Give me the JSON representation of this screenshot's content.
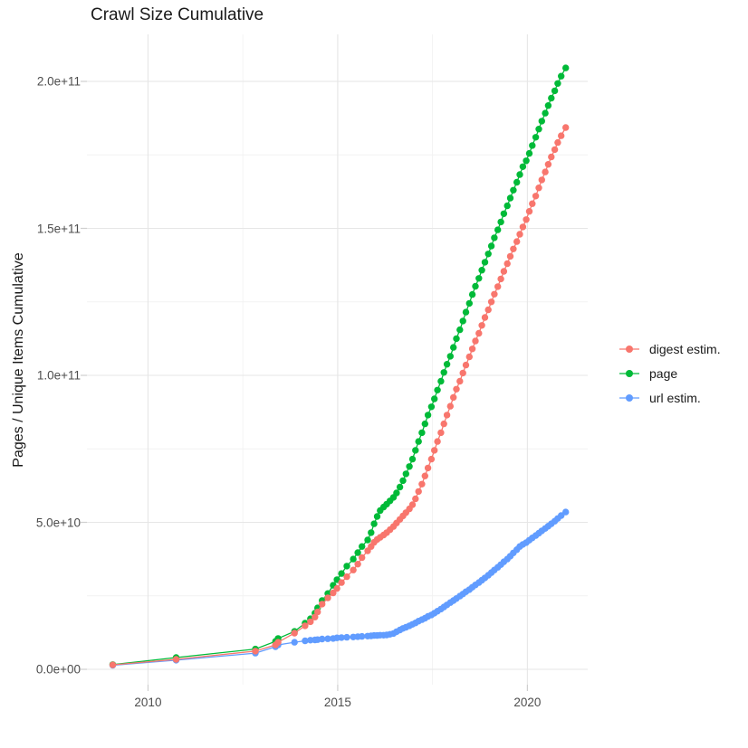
{
  "chart_data": {
    "type": "scatter",
    "title": "Crawl Size Cumulative",
    "xlabel": "",
    "ylabel": "Pages / Unique Items Cumulative",
    "legend_position": "right",
    "grid": true,
    "x_ticks": [
      {
        "value": 2010,
        "label": "2010"
      },
      {
        "value": 2015,
        "label": "2015"
      },
      {
        "value": 2020,
        "label": "2020"
      }
    ],
    "y_ticks": [
      {
        "value": 0,
        "label": "0.0e+00"
      },
      {
        "value": 50,
        "label": "5.0e+10"
      },
      {
        "value": 100,
        "label": "1.0e+11"
      },
      {
        "value": 150,
        "label": "1.5e+11"
      },
      {
        "value": 200,
        "label": "2.0e+11"
      }
    ],
    "x_minor": [
      2012.5,
      2017.5
    ],
    "y_minor": [
      25,
      75,
      125,
      175
    ],
    "xlim": [
      2008.39,
      2021.59
    ],
    "ylim": [
      -5.23,
      216
    ],
    "y_unit_multiplier": 1000000000.0,
    "colors": {
      "digest": "#F8766D",
      "page": "#00BA38",
      "url": "#619CFF"
    },
    "grid_major_color": "#e6e6e6",
    "grid_minor_color": "#f2f2f2",
    "tick_mark_color": "#cfcfcf",
    "draw_order": [
      2,
      1,
      0
    ],
    "series": [
      {
        "name": "digest estim.",
        "color": "#F8766D",
        "points": [
          [
            2009.07,
            1.5
          ],
          [
            2010.74,
            3.4
          ],
          [
            2012.83,
            6.2
          ],
          [
            2013.36,
            8.3
          ],
          [
            2013.43,
            9.2
          ],
          [
            2013.86,
            12.3
          ],
          [
            2014.14,
            14.8
          ],
          [
            2014.28,
            16.2
          ],
          [
            2014.4,
            17.8
          ],
          [
            2014.47,
            19.5
          ],
          [
            2014.59,
            22.2
          ],
          [
            2014.74,
            24.3
          ],
          [
            2014.88,
            26.0
          ],
          [
            2014.98,
            27.5
          ],
          [
            2015.1,
            29.5
          ],
          [
            2015.24,
            31.5
          ],
          [
            2015.41,
            33.8
          ],
          [
            2015.53,
            35.8
          ],
          [
            2015.64,
            38.0
          ],
          [
            2015.79,
            40.3
          ],
          [
            2015.88,
            41.8
          ],
          [
            2015.96,
            43.2
          ],
          [
            2016.04,
            44.2
          ],
          [
            2016.12,
            44.9
          ],
          [
            2016.21,
            45.7
          ],
          [
            2016.29,
            46.5
          ],
          [
            2016.38,
            47.5
          ],
          [
            2016.47,
            48.6
          ],
          [
            2016.55,
            49.8
          ],
          [
            2016.64,
            51.0
          ],
          [
            2016.72,
            52.2
          ],
          [
            2016.8,
            53.3
          ],
          [
            2016.89,
            54.6
          ],
          [
            2016.97,
            56.0
          ],
          [
            2017.05,
            58.0
          ],
          [
            2017.13,
            60.5
          ],
          [
            2017.22,
            63.0
          ],
          [
            2017.3,
            65.8
          ],
          [
            2017.38,
            68.5
          ],
          [
            2017.47,
            71.5
          ],
          [
            2017.55,
            74.5
          ],
          [
            2017.63,
            77.5
          ],
          [
            2017.72,
            80.5
          ],
          [
            2017.8,
            83.5
          ],
          [
            2017.88,
            86.5
          ],
          [
            2017.97,
            89.5
          ],
          [
            2018.05,
            92.5
          ],
          [
            2018.13,
            95.3
          ],
          [
            2018.22,
            98.0
          ],
          [
            2018.3,
            100.8
          ],
          [
            2018.38,
            103.5
          ],
          [
            2018.47,
            106.3
          ],
          [
            2018.55,
            109.0
          ],
          [
            2018.63,
            111.7
          ],
          [
            2018.72,
            114.3
          ],
          [
            2018.8,
            117.0
          ],
          [
            2018.88,
            119.7
          ],
          [
            2018.97,
            122.3
          ],
          [
            2019.05,
            125.0
          ],
          [
            2019.13,
            127.6
          ],
          [
            2019.22,
            130.2
          ],
          [
            2019.3,
            132.8
          ],
          [
            2019.38,
            135.4
          ],
          [
            2019.47,
            138.0
          ],
          [
            2019.55,
            140.5
          ],
          [
            2019.63,
            143.0
          ],
          [
            2019.72,
            145.5
          ],
          [
            2019.8,
            148.0
          ],
          [
            2019.88,
            150.5
          ],
          [
            2019.97,
            153.0
          ],
          [
            2020.05,
            155.8
          ],
          [
            2020.13,
            158.4
          ],
          [
            2020.22,
            161.0
          ],
          [
            2020.3,
            163.8
          ],
          [
            2020.38,
            166.5
          ],
          [
            2020.47,
            169.2
          ],
          [
            2020.55,
            171.8
          ],
          [
            2020.63,
            174.3
          ],
          [
            2020.72,
            176.8
          ],
          [
            2020.8,
            179.2
          ],
          [
            2020.89,
            181.5
          ],
          [
            2021.01,
            184.3
          ]
        ]
      },
      {
        "name": "page",
        "color": "#00BA38",
        "points": [
          [
            2009.07,
            1.6
          ],
          [
            2010.74,
            4.0
          ],
          [
            2012.83,
            6.9
          ],
          [
            2013.36,
            9.5
          ],
          [
            2013.43,
            10.5
          ],
          [
            2013.86,
            12.9
          ],
          [
            2014.14,
            15.7
          ],
          [
            2014.28,
            17.2
          ],
          [
            2014.4,
            19.1
          ],
          [
            2014.47,
            20.9
          ],
          [
            2014.59,
            23.4
          ],
          [
            2014.74,
            25.8
          ],
          [
            2014.88,
            28.6
          ],
          [
            2014.98,
            30.5
          ],
          [
            2015.1,
            32.6
          ],
          [
            2015.24,
            35.1
          ],
          [
            2015.41,
            37.5
          ],
          [
            2015.53,
            39.7
          ],
          [
            2015.64,
            41.8
          ],
          [
            2015.79,
            44.0
          ],
          [
            2015.88,
            46.5
          ],
          [
            2015.96,
            49.5
          ],
          [
            2016.04,
            52.0
          ],
          [
            2016.12,
            54.0
          ],
          [
            2016.21,
            55.2
          ],
          [
            2016.29,
            56.2
          ],
          [
            2016.38,
            57.3
          ],
          [
            2016.47,
            58.5
          ],
          [
            2016.55,
            60.0
          ],
          [
            2016.64,
            62.0
          ],
          [
            2016.72,
            64.2
          ],
          [
            2016.8,
            66.5
          ],
          [
            2016.89,
            69.0
          ],
          [
            2016.97,
            71.5
          ],
          [
            2017.05,
            74.5
          ],
          [
            2017.13,
            77.5
          ],
          [
            2017.22,
            80.5
          ],
          [
            2017.3,
            83.5
          ],
          [
            2017.38,
            86.5
          ],
          [
            2017.47,
            89.3
          ],
          [
            2017.55,
            92.0
          ],
          [
            2017.63,
            95.0
          ],
          [
            2017.72,
            98.0
          ],
          [
            2017.8,
            101.0
          ],
          [
            2017.88,
            103.8
          ],
          [
            2017.97,
            106.5
          ],
          [
            2018.05,
            109.5
          ],
          [
            2018.13,
            112.5
          ],
          [
            2018.22,
            115.5
          ],
          [
            2018.3,
            118.5
          ],
          [
            2018.38,
            121.5
          ],
          [
            2018.47,
            124.5
          ],
          [
            2018.55,
            127.5
          ],
          [
            2018.63,
            130.3
          ],
          [
            2018.72,
            133.0
          ],
          [
            2018.8,
            135.8
          ],
          [
            2018.88,
            138.5
          ],
          [
            2018.97,
            141.3
          ],
          [
            2019.05,
            144.0
          ],
          [
            2019.13,
            146.8
          ],
          [
            2019.22,
            149.5
          ],
          [
            2019.3,
            152.2
          ],
          [
            2019.38,
            155.0
          ],
          [
            2019.47,
            157.7
          ],
          [
            2019.55,
            160.3
          ],
          [
            2019.63,
            163.0
          ],
          [
            2019.72,
            165.7
          ],
          [
            2019.8,
            168.3
          ],
          [
            2019.88,
            171.0
          ],
          [
            2019.97,
            173.0
          ],
          [
            2020.05,
            175.5
          ],
          [
            2020.13,
            178.2
          ],
          [
            2020.22,
            181.0
          ],
          [
            2020.3,
            183.8
          ],
          [
            2020.38,
            186.5
          ],
          [
            2020.47,
            189.2
          ],
          [
            2020.55,
            191.8
          ],
          [
            2020.63,
            194.3
          ],
          [
            2020.72,
            196.8
          ],
          [
            2020.8,
            199.3
          ],
          [
            2020.89,
            201.8
          ],
          [
            2021.01,
            204.6
          ]
        ]
      },
      {
        "name": "url estim.",
        "color": "#619CFF",
        "points": [
          [
            2009.07,
            1.4
          ],
          [
            2010.74,
            3.1
          ],
          [
            2012.83,
            5.5
          ],
          [
            2013.36,
            7.7
          ],
          [
            2013.43,
            8.3
          ],
          [
            2013.86,
            9.2
          ],
          [
            2014.14,
            9.7
          ],
          [
            2014.28,
            9.9
          ],
          [
            2014.4,
            10.0
          ],
          [
            2014.47,
            10.1
          ],
          [
            2014.59,
            10.3
          ],
          [
            2014.74,
            10.4
          ],
          [
            2014.88,
            10.5
          ],
          [
            2014.98,
            10.7
          ],
          [
            2015.1,
            10.8
          ],
          [
            2015.24,
            10.9
          ],
          [
            2015.41,
            11.0
          ],
          [
            2015.53,
            11.1
          ],
          [
            2015.64,
            11.2
          ],
          [
            2015.79,
            11.3
          ],
          [
            2015.88,
            11.4
          ],
          [
            2015.96,
            11.5
          ],
          [
            2016.04,
            11.5
          ],
          [
            2016.12,
            11.6
          ],
          [
            2016.21,
            11.6
          ],
          [
            2016.29,
            11.7
          ],
          [
            2016.38,
            11.9
          ],
          [
            2016.47,
            12.2
          ],
          [
            2016.55,
            12.8
          ],
          [
            2016.64,
            13.4
          ],
          [
            2016.72,
            13.9
          ],
          [
            2016.8,
            14.3
          ],
          [
            2016.89,
            14.8
          ],
          [
            2016.97,
            15.3
          ],
          [
            2017.05,
            15.8
          ],
          [
            2017.13,
            16.4
          ],
          [
            2017.22,
            16.9
          ],
          [
            2017.3,
            17.4
          ],
          [
            2017.38,
            18.0
          ],
          [
            2017.47,
            18.5
          ],
          [
            2017.55,
            19.1
          ],
          [
            2017.63,
            19.8
          ],
          [
            2017.72,
            20.5
          ],
          [
            2017.8,
            21.2
          ],
          [
            2017.88,
            21.9
          ],
          [
            2017.97,
            22.7
          ],
          [
            2018.05,
            23.4
          ],
          [
            2018.13,
            24.1
          ],
          [
            2018.22,
            24.9
          ],
          [
            2018.3,
            25.6
          ],
          [
            2018.38,
            26.4
          ],
          [
            2018.47,
            27.1
          ],
          [
            2018.55,
            27.9
          ],
          [
            2018.63,
            28.7
          ],
          [
            2018.72,
            29.5
          ],
          [
            2018.8,
            30.3
          ],
          [
            2018.88,
            31.1
          ],
          [
            2018.97,
            32.0
          ],
          [
            2019.05,
            32.9
          ],
          [
            2019.13,
            33.8
          ],
          [
            2019.22,
            34.7
          ],
          [
            2019.3,
            35.6
          ],
          [
            2019.38,
            36.6
          ],
          [
            2019.47,
            37.5
          ],
          [
            2019.55,
            38.5
          ],
          [
            2019.63,
            39.6
          ],
          [
            2019.72,
            40.7
          ],
          [
            2019.8,
            41.8
          ],
          [
            2019.88,
            42.5
          ],
          [
            2019.97,
            43.1
          ],
          [
            2020.05,
            43.9
          ],
          [
            2020.13,
            44.7
          ],
          [
            2020.22,
            45.5
          ],
          [
            2020.3,
            46.3
          ],
          [
            2020.38,
            47.1
          ],
          [
            2020.47,
            47.9
          ],
          [
            2020.55,
            48.7
          ],
          [
            2020.63,
            49.5
          ],
          [
            2020.72,
            50.4
          ],
          [
            2020.8,
            51.3
          ],
          [
            2020.89,
            52.3
          ],
          [
            2021.01,
            53.5
          ]
        ]
      }
    ]
  }
}
